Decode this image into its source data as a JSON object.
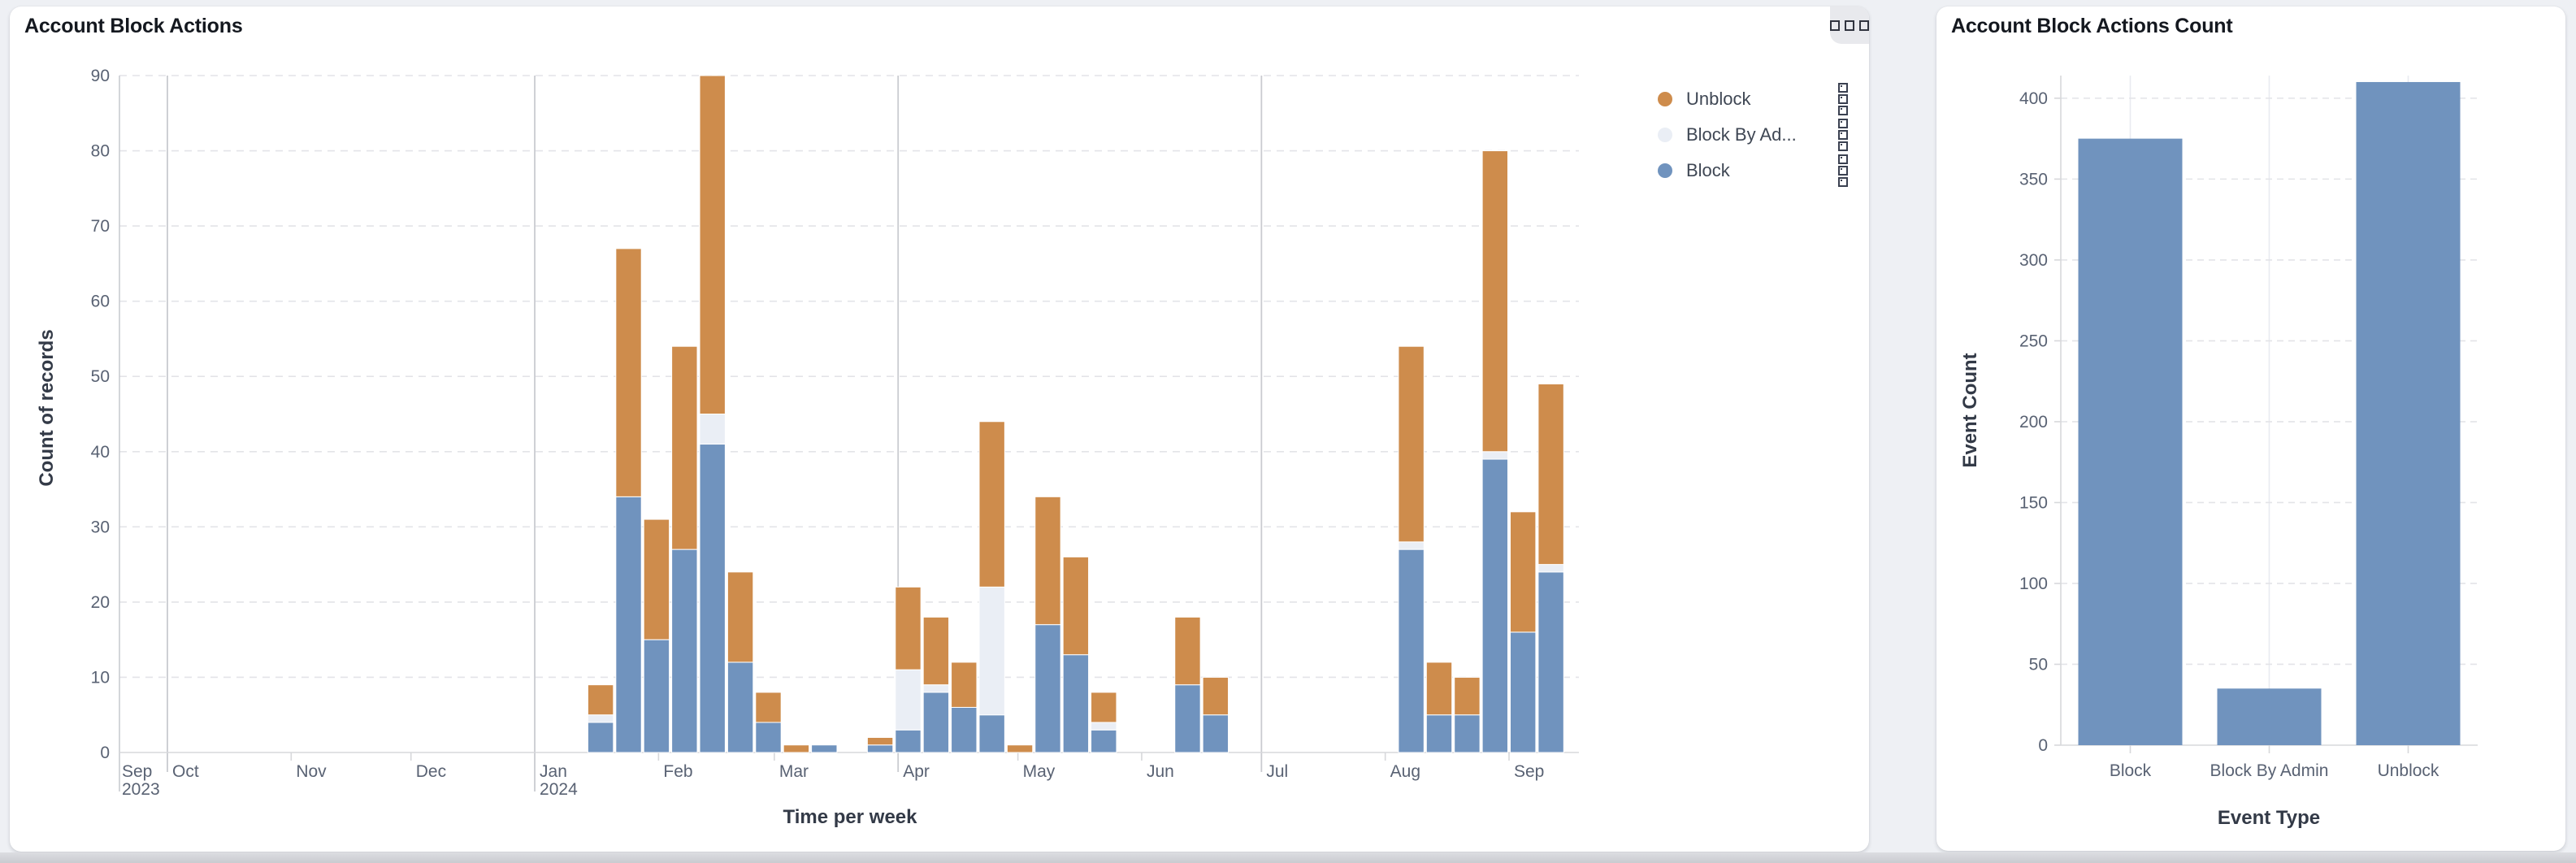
{
  "page": {
    "background": "#eef0f4"
  },
  "colors": {
    "block": "#7093be",
    "block_by_admin": "#eaeef5",
    "unblock": "#ce8c4c",
    "grid_dashed": "#e3e4e8",
    "quarter_line": "#c9cbd0",
    "axis_line": "#d7d8db",
    "tick_label": "#596273",
    "band_line": "#e9ebf1"
  },
  "left_panel": {
    "title": "Account Block Actions",
    "menu_icon": "grid-menu-icon",
    "legend": [
      {
        "label": "Unblock",
        "color": "#ce8c4c",
        "handle_icon": "drag-handle-icon"
      },
      {
        "label": "Block By Ad...",
        "color": "#eaeef5",
        "handle_icon": "drag-handle-icon"
      },
      {
        "label": "Block",
        "color": "#7093be",
        "handle_icon": "drag-handle-icon"
      }
    ],
    "chart_data": {
      "type": "bar",
      "stacked": true,
      "title": "Account Block Actions",
      "xlabel": "Time per week",
      "ylabel": "Count of records",
      "ylim": [
        0,
        90
      ],
      "y_ticks": [
        0,
        10,
        20,
        30,
        40,
        50,
        60,
        70,
        80,
        90
      ],
      "grid": "dashed horizontal lines every 10; solid vertical lines at quarter starts",
      "legend_position": "top-right",
      "series_order_bottom_to_top": [
        "Block",
        "Block By Admin",
        "Unblock"
      ],
      "x_axis_start_label": {
        "label": "Sep",
        "sublabel": "2023"
      },
      "x_ticks": [
        {
          "date": "2023-10-01",
          "label": "Oct",
          "quarter": true
        },
        {
          "date": "2023-11-01",
          "label": "Nov"
        },
        {
          "date": "2023-12-01",
          "label": "Dec"
        },
        {
          "date": "2024-01-01",
          "label": "Jan",
          "sublabel": "2024",
          "quarter": true
        },
        {
          "date": "2024-02-01",
          "label": "Feb"
        },
        {
          "date": "2024-03-01",
          "label": "Mar"
        },
        {
          "date": "2024-04-01",
          "label": "Apr",
          "quarter": true
        },
        {
          "date": "2024-05-01",
          "label": "May"
        },
        {
          "date": "2024-06-01",
          "label": "Jun"
        },
        {
          "date": "2024-07-01",
          "label": "Jul",
          "quarter": true
        },
        {
          "date": "2024-08-01",
          "label": "Aug"
        },
        {
          "date": "2024-09-01",
          "label": "Sep"
        }
      ],
      "weeks": [
        {
          "week": "2024-01-14",
          "block": 4,
          "block_by_admin": 1,
          "unblock": 4
        },
        {
          "week": "2024-01-21",
          "block": 34,
          "block_by_admin": 0,
          "unblock": 33
        },
        {
          "week": "2024-01-28",
          "block": 15,
          "block_by_admin": 0,
          "unblock": 16
        },
        {
          "week": "2024-02-04",
          "block": 27,
          "block_by_admin": 0,
          "unblock": 27
        },
        {
          "week": "2024-02-11",
          "block": 41,
          "block_by_admin": 4,
          "unblock": 45
        },
        {
          "week": "2024-02-18",
          "block": 12,
          "block_by_admin": 0,
          "unblock": 12
        },
        {
          "week": "2024-02-25",
          "block": 4,
          "block_by_admin": 0,
          "unblock": 4
        },
        {
          "week": "2024-03-03",
          "block": 0,
          "block_by_admin": 0,
          "unblock": 1
        },
        {
          "week": "2024-03-10",
          "block": 1,
          "block_by_admin": 0,
          "unblock": 0
        },
        {
          "week": "2024-03-24",
          "block": 1,
          "block_by_admin": 0,
          "unblock": 1
        },
        {
          "week": "2024-03-31",
          "block": 3,
          "block_by_admin": 8,
          "unblock": 11
        },
        {
          "week": "2024-04-07",
          "block": 8,
          "block_by_admin": 1,
          "unblock": 9
        },
        {
          "week": "2024-04-14",
          "block": 6,
          "block_by_admin": 0,
          "unblock": 6
        },
        {
          "week": "2024-04-21",
          "block": 5,
          "block_by_admin": 17,
          "unblock": 22
        },
        {
          "week": "2024-04-28",
          "block": 0,
          "block_by_admin": 0,
          "unblock": 1
        },
        {
          "week": "2024-05-05",
          "block": 17,
          "block_by_admin": 0,
          "unblock": 17
        },
        {
          "week": "2024-05-12",
          "block": 13,
          "block_by_admin": 0,
          "unblock": 13
        },
        {
          "week": "2024-05-19",
          "block": 3,
          "block_by_admin": 1,
          "unblock": 4
        },
        {
          "week": "2024-06-09",
          "block": 9,
          "block_by_admin": 0,
          "unblock": 9
        },
        {
          "week": "2024-06-16",
          "block": 5,
          "block_by_admin": 0,
          "unblock": 5
        },
        {
          "week": "2024-08-04",
          "block": 27,
          "block_by_admin": 1,
          "unblock": 26
        },
        {
          "week": "2024-08-11",
          "block": 5,
          "block_by_admin": 0,
          "unblock": 7
        },
        {
          "week": "2024-08-18",
          "block": 5,
          "block_by_admin": 0,
          "unblock": 5
        },
        {
          "week": "2024-08-25",
          "block": 39,
          "block_by_admin": 1,
          "unblock": 40
        },
        {
          "week": "2024-09-01",
          "block": 16,
          "block_by_admin": 0,
          "unblock": 16
        },
        {
          "week": "2024-09-08",
          "block": 24,
          "block_by_admin": 1,
          "unblock": 24
        }
      ]
    }
  },
  "right_panel": {
    "title": "Account Block Actions Count",
    "chart_data": {
      "type": "bar",
      "title": "Account Block Actions Count",
      "xlabel": "Event Type",
      "ylabel": "Event Count",
      "categories": [
        "Block",
        "Block By Admin",
        "Unblock"
      ],
      "values": [
        375,
        35,
        410
      ],
      "bar_color": "#7093be",
      "ylim": [
        0,
        414
      ],
      "y_ticks": [
        0,
        50,
        100,
        150,
        200,
        250,
        300,
        350,
        400
      ],
      "grid": "dashed horizontal lines every 50; solid vertical line at each category center"
    }
  }
}
